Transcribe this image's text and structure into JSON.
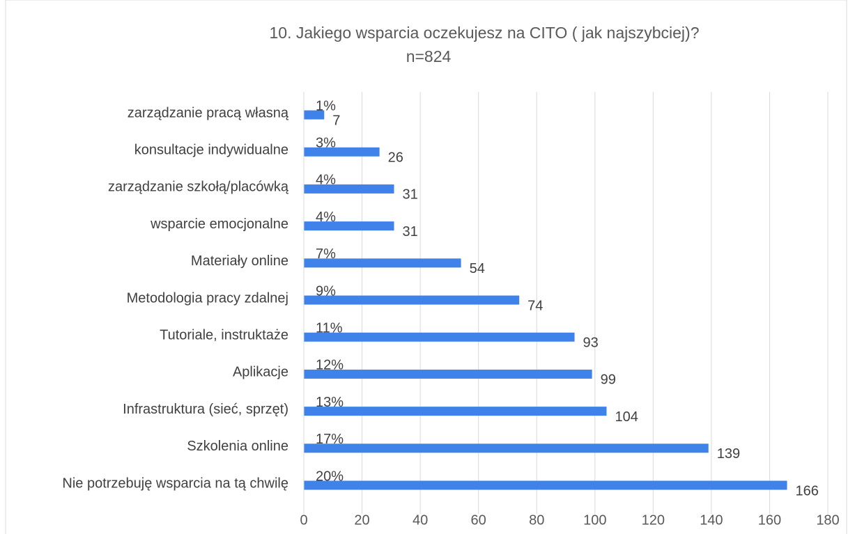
{
  "chart_data": {
    "type": "bar",
    "orientation": "horizontal",
    "title": "10. Jakiego wsparcia oczekujesz na CITO ( jak najszybciej)?",
    "subtitle": "n=824",
    "categories": [
      "zarządzanie pracą własną",
      "konsultacje indywidualne",
      "zarządzanie szkołą/placówką",
      "wsparcie emocjonalne",
      "Materiały online",
      "Metodologia pracy zdalnej",
      "Tutoriale, instruktaże",
      "Aplikacje",
      "Infrastruktura (sieć, sprzęt)",
      "Szkolenia online",
      "Nie potrzebuję wsparcia na tą chwilę"
    ],
    "values": [
      7,
      26,
      31,
      31,
      54,
      74,
      93,
      99,
      104,
      139,
      166
    ],
    "percent_labels": [
      "1%",
      "3%",
      "4%",
      "4%",
      "7%",
      "9%",
      "11%",
      "12%",
      "13%",
      "17%",
      "20%"
    ],
    "color": "#3f83ea",
    "xlim": [
      0,
      180
    ],
    "xticks": [
      0,
      20,
      40,
      60,
      80,
      100,
      120,
      140,
      160,
      180
    ],
    "grid": true
  }
}
